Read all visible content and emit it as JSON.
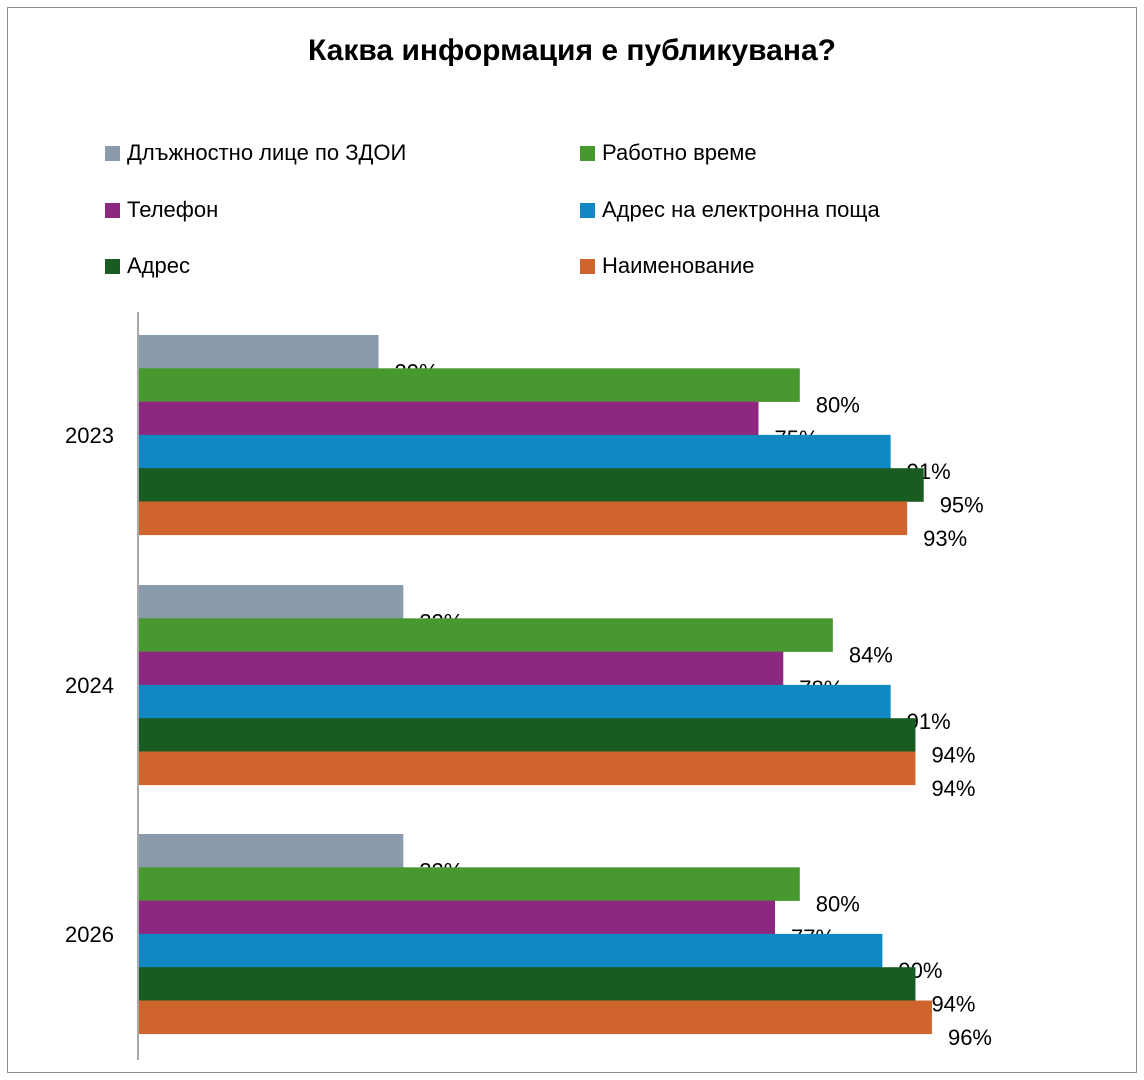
{
  "chart_data": {
    "type": "bar",
    "orientation": "horizontal",
    "title": "Каква информация е публикувана?",
    "categories": [
      "2023",
      "2024",
      "2026"
    ],
    "series": [
      {
        "name": "Длъжностно лице по ЗДОИ",
        "color": "#8a9bab",
        "values": [
          29,
          32,
          32
        ],
        "labels": [
          "29%",
          "32%",
          "32%"
        ]
      },
      {
        "name": "Работно време",
        "color": "#46982f",
        "values": [
          80,
          84,
          80
        ],
        "labels": [
          "80%",
          "84%",
          "80%"
        ]
      },
      {
        "name": "Телефон",
        "color": "#8c2880",
        "values": [
          75,
          78,
          77
        ],
        "labels": [
          "75%",
          "78%",
          "77%"
        ]
      },
      {
        "name": "Адрес на електронна поща",
        "color": "#1089c3",
        "values": [
          91,
          91,
          90
        ],
        "labels": [
          "91%",
          "91%",
          "90%"
        ]
      },
      {
        "name": "Адрес",
        "color": "#185c22",
        "values": [
          95,
          94,
          94
        ],
        "labels": [
          "95%",
          "94%",
          "94%"
        ]
      },
      {
        "name": "Наименование",
        "color": "#d0642d",
        "values": [
          93,
          94,
          96
        ],
        "labels": [
          "93%",
          "94%",
          "96%"
        ]
      }
    ],
    "xlim": [
      0,
      100
    ],
    "grid": false,
    "legend_position": "top"
  }
}
